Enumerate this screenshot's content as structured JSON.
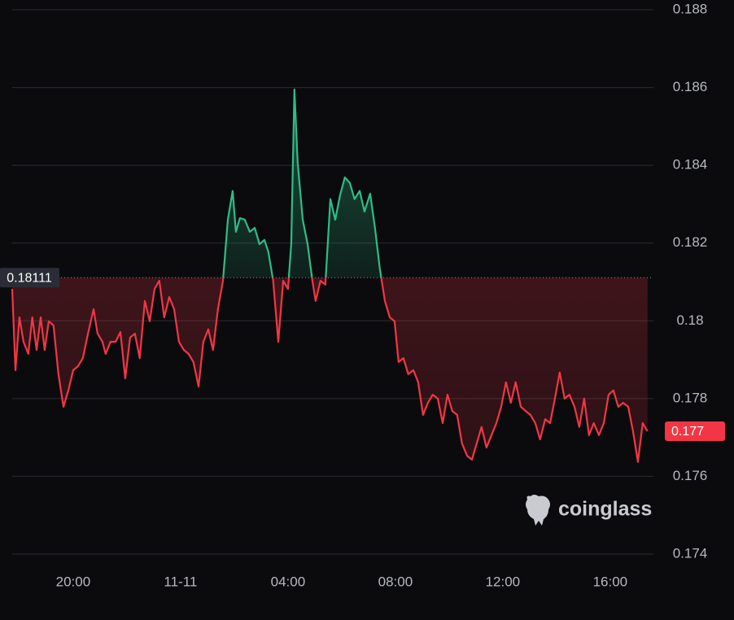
{
  "chart_data": {
    "type": "baseline",
    "x": [
      -6.27,
      -6.15,
      -6.0,
      -5.85,
      -5.67,
      -5.52,
      -5.36,
      -5.21,
      -5.06,
      -4.91,
      -4.73,
      -4.55,
      -4.36,
      -4.18,
      -4.0,
      -3.82,
      -3.64,
      -3.45,
      -3.24,
      -3.09,
      -2.91,
      -2.79,
      -2.61,
      -2.42,
      -2.24,
      -2.06,
      -1.88,
      -1.7,
      -1.52,
      -1.33,
      -1.15,
      -0.97,
      -0.79,
      -0.61,
      -0.42,
      -0.24,
      -0.06,
      0.12,
      0.3,
      0.48,
      0.67,
      0.85,
      1.03,
      1.21,
      1.39,
      1.58,
      1.76,
      1.94,
      2.06,
      2.21,
      2.39,
      2.58,
      2.76,
      2.94,
      3.12,
      3.27,
      3.45,
      3.64,
      3.82,
      4.0,
      4.12,
      4.24,
      4.36,
      4.55,
      4.73,
      4.91,
      5.03,
      5.21,
      5.39,
      5.58,
      5.76,
      5.94,
      6.12,
      6.3,
      6.48,
      6.67,
      6.85,
      7.06,
      7.24,
      7.42,
      7.61,
      7.79,
      7.97,
      8.12,
      8.3,
      8.48,
      8.67,
      8.85,
      9.03,
      9.21,
      9.39,
      9.58,
      9.76,
      9.94,
      10.12,
      10.3,
      10.48,
      10.67,
      10.85,
      11.03,
      11.21,
      11.39,
      11.58,
      11.76,
      11.94,
      12.12,
      12.3,
      12.48,
      12.67,
      12.85,
      13.03,
      13.21,
      13.39,
      13.58,
      13.76,
      13.94,
      14.12,
      14.3,
      14.48,
      14.67,
      14.85,
      15.03,
      15.21,
      15.39,
      15.58,
      15.76,
      15.94,
      16.12,
      16.3,
      16.48,
      16.67,
      16.85,
      17.03,
      17.21,
      17.39
    ],
    "values": [
      0.18082,
      0.17873,
      0.18009,
      0.17946,
      0.17915,
      0.18009,
      0.17925,
      0.18009,
      0.17925,
      0.17999,
      0.17988,
      0.17863,
      0.17779,
      0.17821,
      0.17873,
      0.17883,
      0.17904,
      0.17967,
      0.1803,
      0.17967,
      0.17946,
      0.17915,
      0.17946,
      0.17946,
      0.17971,
      0.17852,
      0.17957,
      0.17967,
      0.17904,
      0.18051,
      0.17999,
      0.18082,
      0.18103,
      0.18009,
      0.18061,
      0.1803,
      0.17946,
      0.17925,
      0.17915,
      0.17894,
      0.17831,
      0.17946,
      0.17978,
      0.17925,
      0.1803,
      0.18103,
      0.1826,
      0.18334,
      0.18229,
      0.18264,
      0.1826,
      0.18229,
      0.18239,
      0.18197,
      0.18208,
      0.18177,
      0.18103,
      0.17946,
      0.18103,
      0.18082,
      0.18197,
      0.18595,
      0.18407,
      0.1826,
      0.18197,
      0.18103,
      0.18051,
      0.18103,
      0.18093,
      0.18313,
      0.1826,
      0.18323,
      0.18369,
      0.18355,
      0.18313,
      0.18334,
      0.18281,
      0.18327,
      0.18239,
      0.18135,
      0.18051,
      0.18009,
      0.17999,
      0.17894,
      0.17904,
      0.17863,
      0.17873,
      0.17842,
      0.17758,
      0.17789,
      0.1781,
      0.178,
      0.17737,
      0.1781,
      0.17768,
      0.17758,
      0.17685,
      0.17653,
      0.17643,
      0.17685,
      0.17727,
      0.17674,
      0.17706,
      0.17737,
      0.17779,
      0.17842,
      0.17789,
      0.17842,
      0.17779,
      0.17768,
      0.17758,
      0.17737,
      0.17695,
      0.17747,
      0.17737,
      0.178,
      0.17867,
      0.178,
      0.1781,
      0.17779,
      0.17727,
      0.178,
      0.17706,
      0.17737,
      0.17706,
      0.17737,
      0.1781,
      0.17821,
      0.17779,
      0.17789,
      0.17779,
      0.17716,
      0.17637,
      0.17737,
      0.17716
    ],
    "baseline": 0.18111,
    "last_price": 0.177,
    "up_color": "#2ebd85",
    "down_color": "#f23645",
    "xlim": [
      -6.27,
      17.61
    ],
    "ylim": [
      0.174,
      0.188
    ],
    "xticks": [
      {
        "value": -4,
        "label": "20:00"
      },
      {
        "value": 0,
        "label": "11-11"
      },
      {
        "value": 4,
        "label": "04:00"
      },
      {
        "value": 8,
        "label": "08:00"
      },
      {
        "value": 12,
        "label": "12:00"
      },
      {
        "value": 16,
        "label": "16:00"
      }
    ],
    "yticks": [
      0.174,
      0.176,
      0.178,
      0.18,
      0.182,
      0.184,
      0.186,
      0.188
    ],
    "grid": true,
    "watermark": "coinglass"
  }
}
